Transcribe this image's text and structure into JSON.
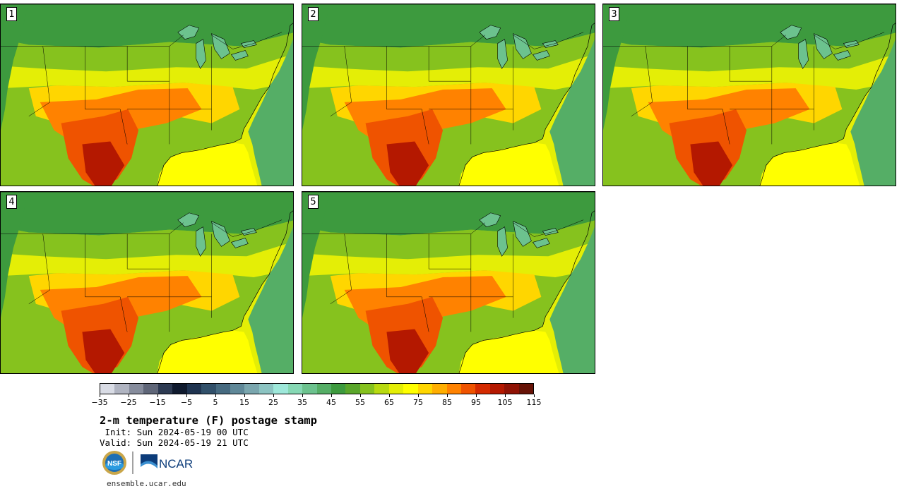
{
  "panels": [
    "1",
    "2",
    "3",
    "4",
    "5"
  ],
  "colorbar": {
    "colors": [
      "#d9dce5",
      "#b0b4c1",
      "#868c9c",
      "#5f6678",
      "#2d3a52",
      "#0f1a2e",
      "#1f3450",
      "#31506a",
      "#466a80",
      "#5f8898",
      "#7aa6ae",
      "#8cc4c2",
      "#9ee8da",
      "#86d8b4",
      "#6cc28e",
      "#55ae66",
      "#3d9a3e",
      "#5aa62a",
      "#86c21e",
      "#b8da10",
      "#e4ee06",
      "#ffff00",
      "#ffd600",
      "#ffae00",
      "#ff8200",
      "#ef5300",
      "#d42a00",
      "#b41800",
      "#8f1204",
      "#661206"
    ],
    "tick_labels": [
      "−35",
      "−25",
      "−15",
      "−5",
      "5",
      "15",
      "25",
      "35",
      "45",
      "55",
      "65",
      "75",
      "85",
      "95",
      "105",
      "115"
    ]
  },
  "title": "2-m temperature (F) postage stamp",
  "init_line": " Init: Sun 2024-05-19 00 UTC",
  "valid_line": "Valid: Sun 2024-05-19 21 UTC",
  "logos": {
    "left": "NSF",
    "right": "NCAR"
  },
  "url": "ensemble.ucar.edu"
}
